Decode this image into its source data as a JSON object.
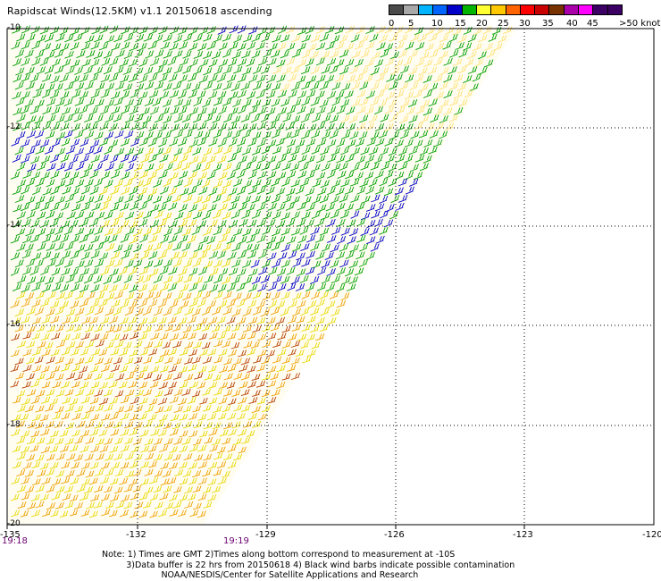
{
  "title": "Rapidscat Winds(12.5KM) v1.1 20150618 ascending",
  "legend": {
    "colors": [
      "#4a4a4a",
      "#a8a8a8",
      "#00b4ff",
      "#0064ff",
      "#0000c8",
      "#00b400",
      "#ffff32",
      "#ffc800",
      "#ff6400",
      "#ff0000",
      "#c80000",
      "#783200",
      "#aa00aa",
      "#ff00ff",
      "#3c0064",
      "#3c0064"
    ],
    "labels": [
      "0",
      "5",
      "10",
      "15",
      "20",
      "25",
      "30",
      "35",
      "40",
      "45",
      ">50 knots"
    ]
  },
  "map": {
    "lat_labels": [
      "-10",
      "-12",
      "-14",
      "-16",
      "-18",
      "-20"
    ],
    "lon_labels": [
      "-135",
      "-132",
      "-129",
      "-126",
      "-123",
      "-120"
    ],
    "time_labels": [
      "19:18",
      "19:19"
    ]
  },
  "notes": {
    "line1": "Note: 1) Times are GMT 2)Times along bottom correspond to measurement at -10S",
    "line2": "3)Data buffer is 22 hrs from 20150618 4) Black wind barbs indicate possible contamination",
    "line3": "NOAA/NESDIS/Center for Satellite Applications and Research"
  },
  "barb_colors": {
    "yellow": "#e8d800",
    "orange": "#f0a000",
    "brown": "#b84000",
    "green": "#00a000",
    "blue": "#0000c8",
    "light_yellow": "#ffe070"
  }
}
